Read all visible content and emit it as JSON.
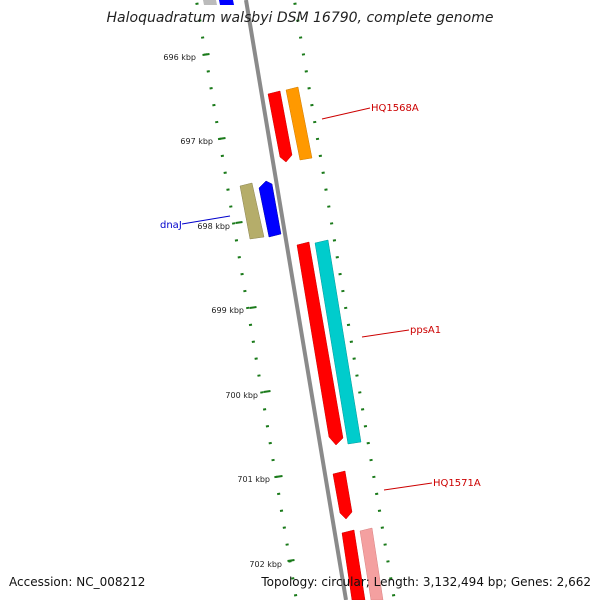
{
  "title": "Haloquadratum walsbyi DSM 16790, complete genome",
  "footer": {
    "accession": "Accession: NC_008212",
    "topology": "Topology: circular; Length: 3,132,494 bp; Genes: 2,662"
  },
  "colors": {
    "backbone": "#8a8a8a",
    "tick": "#1a7a1a",
    "red_gene": "#ff0000",
    "orange_gene": "#ff9900",
    "cyan_gene": "#00cccc",
    "blue_gene": "#0000ff",
    "khaki_gene": "#b5ad6a",
    "pink_gene": "#f4a0a0",
    "label_red": "#cc0000",
    "label_blue": "#0000cc"
  },
  "tick_labels": [
    "696 kbp",
    "697 kbp",
    "698 kbp",
    "699 kbp",
    "700 kbp",
    "701 kbp",
    "702 kbp"
  ],
  "gene_labels": {
    "hq1568a": "HQ1568A",
    "dnaj": "dnaJ",
    "ppsa1": "ppsA1",
    "hq1571a": "HQ1571A"
  }
}
